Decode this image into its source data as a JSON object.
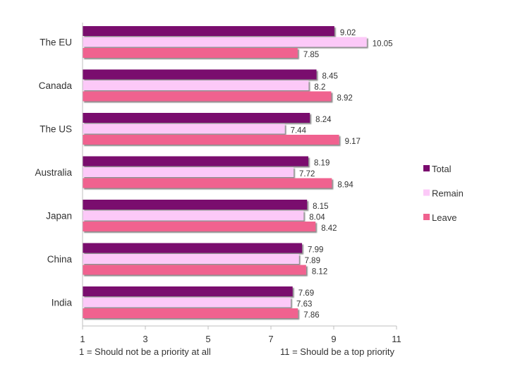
{
  "chart_data": {
    "type": "bar",
    "orientation": "horizontal",
    "categories": [
      "The EU",
      "Canada",
      "The US",
      "Australia",
      "Japan",
      "China",
      "India"
    ],
    "series": [
      {
        "name": "Total",
        "color": "#7a0a6e",
        "values": [
          9.02,
          8.45,
          8.24,
          8.19,
          8.15,
          7.99,
          7.69
        ]
      },
      {
        "name": "Remain",
        "color": "#fcc9f8",
        "values": [
          10.05,
          8.2,
          7.44,
          7.72,
          8.04,
          7.89,
          7.63
        ]
      },
      {
        "name": "Leave",
        "color": "#f0628f",
        "values": [
          7.85,
          8.92,
          9.17,
          8.94,
          8.42,
          8.12,
          7.86
        ]
      }
    ],
    "value_labels": [
      [
        "9.02",
        "10.05",
        "7.85"
      ],
      [
        "8.45",
        "8.2",
        "8.92"
      ],
      [
        "8.24",
        "7.44",
        "9.17"
      ],
      [
        "8.19",
        "7.72",
        "8.94"
      ],
      [
        "8.15",
        "8.04",
        "8.42"
      ],
      [
        "7.99",
        "7.89",
        "8.12"
      ],
      [
        "7.69",
        "7.63",
        "7.86"
      ]
    ],
    "xlim": [
      1,
      11
    ],
    "xticks": [
      1,
      3,
      5,
      7,
      9,
      11
    ],
    "x_tick_labels": [
      "1",
      "3",
      "5",
      "7",
      "9",
      "11"
    ],
    "x_note_left": "1 = Should not be a priority at all",
    "x_note_right": "11 = Should be a top priority",
    "legend_position": "right",
    "grid": false,
    "bar_shadow": true
  }
}
